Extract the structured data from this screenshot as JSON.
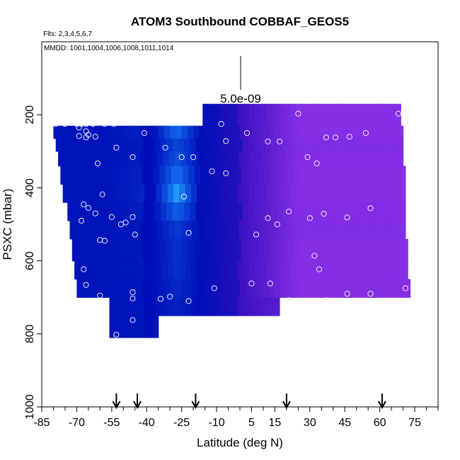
{
  "chart_data": {
    "type": "heatmap",
    "title": "ATOM3 Southbound COBBAF_GEOS5",
    "flights_label": "Flts: 2,3,4,5,6,7",
    "dates_label": "MMDD: 1001,1004,1006,1008,1011,1014",
    "xlabel": "Latitude (deg N)",
    "ylabel": "PSXC (mbar)",
    "xlim": [
      -85,
      85
    ],
    "ylim": [
      1000,
      0
    ],
    "x_ticks": [
      -85,
      -70,
      -55,
      -40,
      -25,
      -10,
      5,
      15,
      30,
      45,
      60,
      75
    ],
    "y_ticks": [
      200,
      400,
      600,
      800,
      1000
    ],
    "scale_label": "5.0e-09",
    "colors": {
      "low": "#0010b8",
      "mid": "#1060e8",
      "high": "#30c8ff",
      "north_low": "#3a10c0",
      "north_high": "#8830e8"
    },
    "bins": [
      {
        "x0": -16,
        "x1": 69,
        "p0": 170,
        "p1": 230,
        "vals_south": 0.15,
        "north": 0.95
      },
      {
        "x0": -80,
        "x1": 70,
        "p0": 230,
        "p1": 265,
        "vals_south": 0.55,
        "north": 0.95
      },
      {
        "x0": -79,
        "x1": 70,
        "p0": 265,
        "p1": 300,
        "vals_south": 0.35,
        "north": 0.9
      },
      {
        "x0": -78,
        "x1": 70,
        "p0": 300,
        "p1": 340,
        "vals_south": 0.4,
        "north": 0.92
      },
      {
        "x0": -77,
        "x1": 71,
        "p0": 340,
        "p1": 390,
        "vals_south": 0.6,
        "north": 0.95
      },
      {
        "x0": -76,
        "x1": 71,
        "p0": 390,
        "p1": 440,
        "vals_south": 0.8,
        "north": 0.95
      },
      {
        "x0": -74,
        "x1": 71,
        "p0": 440,
        "p1": 490,
        "vals_south": 0.5,
        "north": 0.92
      },
      {
        "x0": -73,
        "x1": 71,
        "p0": 490,
        "p1": 540,
        "vals_south": 0.25,
        "north": 0.9
      },
      {
        "x0": -72,
        "x1": 72,
        "p0": 540,
        "p1": 600,
        "vals_south": 0.2,
        "north": 0.95
      },
      {
        "x0": -71,
        "x1": 72,
        "p0": 600,
        "p1": 650,
        "vals_south": 0.2,
        "north": 0.95
      },
      {
        "x0": -70,
        "x1": 73,
        "p0": 650,
        "p1": 700,
        "vals_south": 0.15,
        "north": 0.95
      },
      {
        "x0": -56,
        "x1": 17,
        "p0": 700,
        "p1": 750,
        "vals_south": 0.1,
        "north": 0.6
      },
      {
        "x0": -56,
        "x1": -35,
        "p0": 750,
        "p1": 810,
        "vals_south": 0.05,
        "north": 0.05
      }
    ],
    "points": [
      [
        -79,
        225
      ],
      [
        -75,
        225
      ],
      [
        -70,
        225
      ],
      [
        -68,
        225
      ],
      [
        -66,
        225
      ],
      [
        -63,
        225
      ],
      [
        -58,
        225
      ],
      [
        -54,
        225
      ],
      [
        -69,
        235
      ],
      [
        -66,
        245
      ],
      [
        -69,
        258
      ],
      [
        -65,
        255
      ],
      [
        -62,
        260
      ],
      [
        -66,
        262
      ],
      [
        -41,
        250
      ],
      [
        -25,
        316
      ],
      [
        -53,
        290
      ],
      [
        -32,
        290
      ],
      [
        -20,
        316
      ],
      [
        -46,
        316
      ],
      [
        -61,
        333
      ],
      [
        -6,
        272
      ],
      [
        12,
        273
      ],
      [
        17,
        273
      ],
      [
        3,
        250
      ],
      [
        -18,
        197
      ],
      [
        -8,
        225
      ],
      [
        25,
        197
      ],
      [
        29,
        316
      ],
      [
        33,
        333
      ],
      [
        37,
        262
      ],
      [
        41,
        262
      ],
      [
        47,
        260
      ],
      [
        54,
        250
      ],
      [
        68,
        197
      ],
      [
        -12,
        355
      ],
      [
        -6,
        360
      ],
      [
        -59,
        418
      ],
      [
        -24,
        424
      ],
      [
        -76,
        495
      ],
      [
        -67,
        445
      ],
      [
        -65,
        455
      ],
      [
        -68,
        490
      ],
      [
        -62,
        470
      ],
      [
        -55,
        480
      ],
      [
        -51,
        500
      ],
      [
        -49,
        495
      ],
      [
        -46,
        480
      ],
      [
        -60,
        543
      ],
      [
        -58,
        545
      ],
      [
        -45,
        528
      ],
      [
        -22,
        523
      ],
      [
        7,
        528
      ],
      [
        12,
        483
      ],
      [
        16,
        500
      ],
      [
        21,
        465
      ],
      [
        30,
        483
      ],
      [
        36,
        471
      ],
      [
        46,
        481
      ],
      [
        56,
        456
      ],
      [
        -67,
        623
      ],
      [
        -66,
        666
      ],
      [
        -60,
        695
      ],
      [
        -58,
        715
      ],
      [
        -46,
        686
      ],
      [
        -46,
        703
      ],
      [
        -34,
        704
      ],
      [
        -30,
        698
      ],
      [
        -22,
        710
      ],
      [
        -11,
        675
      ],
      [
        5,
        662
      ],
      [
        13,
        662
      ],
      [
        21,
        708
      ],
      [
        32,
        586
      ],
      [
        34,
        623
      ],
      [
        37,
        708
      ],
      [
        46,
        690
      ],
      [
        56,
        690
      ],
      [
        71,
        675
      ],
      [
        -46,
        762
      ],
      [
        -8,
        760
      ],
      [
        -53,
        802
      ]
    ],
    "arrows_lat": [
      -53,
      -44,
      -19,
      20,
      61
    ]
  }
}
